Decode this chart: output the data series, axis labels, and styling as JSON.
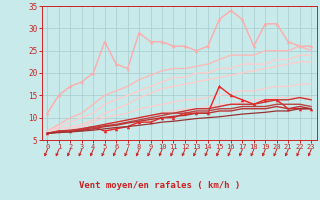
{
  "xlabel": "Vent moyen/en rafales ( km/h )",
  "xlim": [
    0,
    23
  ],
  "ylim": [
    5,
    35
  ],
  "yticks": [
    5,
    10,
    15,
    20,
    25,
    30,
    35
  ],
  "xticks": [
    0,
    1,
    2,
    3,
    4,
    5,
    6,
    7,
    8,
    9,
    10,
    11,
    12,
    13,
    14,
    15,
    16,
    17,
    18,
    19,
    20,
    21,
    22,
    23
  ],
  "bg_color": "#c8eaea",
  "grid_color": "#a8cccc",
  "series": [
    {
      "x": [
        0,
        1,
        2,
        3,
        4,
        5,
        6,
        7,
        8,
        9,
        10,
        11,
        12,
        13,
        14,
        15,
        16,
        17,
        18,
        19,
        20,
        21,
        22,
        23
      ],
      "y": [
        11,
        15,
        17,
        18,
        20,
        27,
        22,
        21,
        29,
        27,
        27,
        26,
        26,
        25,
        26,
        32,
        34,
        32,
        26,
        31,
        31,
        27,
        26,
        26
      ],
      "color": "#ffaaaa",
      "lw": 1.0,
      "marker": "^",
      "ms": 2.5
    },
    {
      "x": [
        0,
        1,
        2,
        3,
        4,
        5,
        6,
        7,
        8,
        9,
        10,
        11,
        12,
        13,
        14,
        15,
        16,
        17,
        18,
        19,
        20,
        21,
        22,
        23
      ],
      "y": [
        7,
        8.5,
        10,
        11,
        13,
        15,
        16,
        17,
        18.5,
        19.5,
        20.5,
        21,
        21,
        21.5,
        22,
        23,
        24,
        24,
        24,
        25,
        25,
        25,
        26,
        25
      ],
      "color": "#ffb8b8",
      "lw": 1.0,
      "marker": null,
      "ms": 0
    },
    {
      "x": [
        0,
        1,
        2,
        3,
        4,
        5,
        6,
        7,
        8,
        9,
        10,
        11,
        12,
        13,
        14,
        15,
        16,
        17,
        18,
        19,
        20,
        21,
        22,
        23
      ],
      "y": [
        7,
        8,
        9,
        10,
        11,
        13,
        14,
        15,
        16,
        17,
        18,
        19,
        19,
        20,
        20,
        21,
        21,
        22,
        22,
        22,
        23,
        23,
        24,
        24
      ],
      "color": "#ffcccc",
      "lw": 1.0,
      "marker": null,
      "ms": 0
    },
    {
      "x": [
        0,
        1,
        2,
        3,
        4,
        5,
        6,
        7,
        8,
        9,
        10,
        11,
        12,
        13,
        14,
        15,
        16,
        17,
        18,
        19,
        20,
        21,
        22,
        23
      ],
      "y": [
        7,
        7.5,
        8,
        8.5,
        9.5,
        11,
        12,
        13,
        14.5,
        15.5,
        16.5,
        17,
        17.5,
        18,
        18.5,
        19,
        19.5,
        20,
        20.5,
        21,
        21.5,
        22,
        22.5,
        22.5
      ],
      "color": "#ffcccc",
      "lw": 1.0,
      "marker": null,
      "ms": 0
    },
    {
      "x": [
        0,
        1,
        2,
        3,
        4,
        5,
        6,
        7,
        8,
        9,
        10,
        11,
        12,
        13,
        14,
        15,
        16,
        17,
        18,
        19,
        20,
        21,
        22,
        23
      ],
      "y": [
        6.5,
        7,
        7.5,
        8,
        9,
        10,
        10.5,
        11,
        12,
        12.5,
        13,
        13.5,
        14,
        14,
        14.5,
        15,
        15.5,
        16,
        16,
        16.5,
        17,
        17,
        17.5,
        17.5
      ],
      "color": "#ffcccc",
      "lw": 0.9,
      "marker": null,
      "ms": 0
    },
    {
      "x": [
        0,
        1,
        2,
        3,
        4,
        5,
        6,
        7,
        8,
        9,
        10,
        11,
        12,
        13,
        14,
        15,
        16,
        17,
        18,
        19,
        20,
        21,
        22,
        23
      ],
      "y": [
        6.5,
        7,
        7,
        7.5,
        8,
        8.5,
        9,
        9.5,
        10,
        10.5,
        11,
        11.5,
        12,
        12,
        12.5,
        13,
        13,
        13.5,
        14,
        14,
        14.5,
        14.5,
        14.5,
        14.5
      ],
      "color": "#ffcccc",
      "lw": 0.9,
      "marker": null,
      "ms": 0
    },
    {
      "x": [
        0,
        1,
        2,
        3,
        4,
        5,
        6,
        7,
        8,
        9,
        10,
        11,
        12,
        13,
        14,
        15,
        16,
        17,
        18,
        19,
        20,
        21,
        22,
        23
      ],
      "y": [
        6.5,
        7,
        7,
        7.5,
        8,
        7,
        7.5,
        8,
        9,
        9,
        10,
        10,
        11,
        11,
        11,
        17,
        15,
        14,
        13,
        14,
        14,
        12,
        12,
        12
      ],
      "color": "#ee2222",
      "lw": 1.0,
      "marker": "^",
      "ms": 2.5
    },
    {
      "x": [
        0,
        1,
        2,
        3,
        4,
        5,
        6,
        7,
        8,
        9,
        10,
        11,
        12,
        13,
        14,
        15,
        16,
        17,
        18,
        19,
        20,
        21,
        22,
        23
      ],
      "y": [
        6.5,
        7,
        7.2,
        7.5,
        8,
        8.5,
        9,
        9.5,
        10,
        10.5,
        11,
        11,
        11.5,
        12,
        12,
        12.5,
        13,
        13,
        13,
        13.5,
        14,
        14,
        14.5,
        14
      ],
      "color": "#cc3333",
      "lw": 1.0,
      "marker": null,
      "ms": 0
    },
    {
      "x": [
        0,
        1,
        2,
        3,
        4,
        5,
        6,
        7,
        8,
        9,
        10,
        11,
        12,
        13,
        14,
        15,
        16,
        17,
        18,
        19,
        20,
        21,
        22,
        23
      ],
      "y": [
        6.5,
        6.8,
        7,
        7.3,
        7.8,
        8.2,
        8.5,
        9,
        9.5,
        10,
        10.5,
        11,
        11,
        11.5,
        11.5,
        12,
        12,
        12.5,
        12.5,
        12.5,
        13,
        13,
        13,
        12.5
      ],
      "color": "#bb4444",
      "lw": 1.0,
      "marker": null,
      "ms": 0
    },
    {
      "x": [
        0,
        1,
        2,
        3,
        4,
        5,
        6,
        7,
        8,
        9,
        10,
        11,
        12,
        13,
        14,
        15,
        16,
        17,
        18,
        19,
        20,
        21,
        22,
        23
      ],
      "y": [
        6.5,
        6.7,
        6.9,
        7.2,
        7.5,
        8,
        8.3,
        8.8,
        9.2,
        9.6,
        10,
        10.3,
        10.5,
        11,
        11,
        11.5,
        11.5,
        12,
        12,
        12,
        12.5,
        12,
        12.5,
        12
      ],
      "color": "#bb3333",
      "lw": 1.0,
      "marker": null,
      "ms": 0
    },
    {
      "x": [
        0,
        1,
        2,
        3,
        4,
        5,
        6,
        7,
        8,
        9,
        10,
        11,
        12,
        13,
        14,
        15,
        16,
        17,
        18,
        19,
        20,
        21,
        22,
        23
      ],
      "y": [
        6.5,
        6.7,
        6.8,
        7,
        7.2,
        7.5,
        7.8,
        8,
        8.3,
        8.6,
        9,
        9.2,
        9.5,
        9.8,
        10,
        10.2,
        10.5,
        10.8,
        11,
        11.2,
        11.5,
        11.5,
        12,
        12
      ],
      "color": "#993333",
      "lw": 0.9,
      "marker": null,
      "ms": 0
    }
  ],
  "arrow_color": "#cc2222",
  "tick_color": "#cc2222",
  "axis_color": "#cc2222",
  "label_color": "#cc2222"
}
